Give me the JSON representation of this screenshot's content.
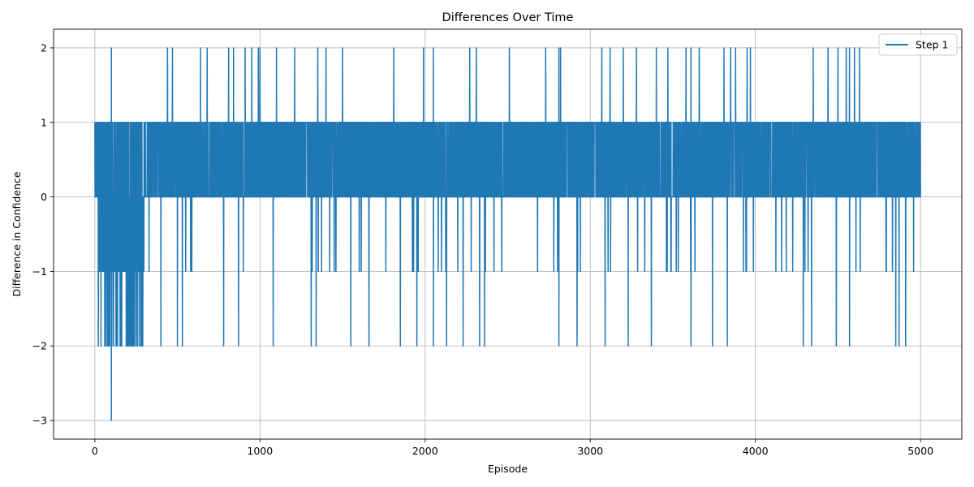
{
  "chart_data": {
    "type": "line",
    "title": "Differences Over Time",
    "xlabel": "Episode",
    "ylabel": "Difference in Confidence",
    "xlim": [
      -250,
      5250
    ],
    "ylim": [
      -3.25,
      2.25
    ],
    "xticks": [
      0,
      1000,
      2000,
      3000,
      4000,
      5000
    ],
    "xtick_labels": [
      "0",
      "1000",
      "2000",
      "3000",
      "4000",
      "5000"
    ],
    "yticks": [
      -3,
      -2,
      -1,
      0,
      1,
      2
    ],
    "ytick_labels": [
      "−3",
      "−2",
      "−1",
      "0",
      "1",
      "2"
    ],
    "grid": true,
    "legend_position": "top-right",
    "color": "#1f77b4",
    "series": [
      {
        "name": "Step 1",
        "episodes": 5000,
        "dominant_range": [
          0,
          1
        ],
        "note_values": "each episode value is an integer difference in {-3,-2,-1,0,1,2}; the series oscillates between 0 and 1 nearly every step",
        "special_points": [
          {
            "x": 100,
            "y": -3
          },
          {
            "x": 100,
            "y": 2
          },
          {
            "x": 440,
            "y": 2
          },
          {
            "x": 470,
            "y": 2
          },
          {
            "x": 640,
            "y": 2
          },
          {
            "x": 680,
            "y": 2
          },
          {
            "x": 810,
            "y": 2
          },
          {
            "x": 840,
            "y": 2
          },
          {
            "x": 910,
            "y": 2
          },
          {
            "x": 950,
            "y": 2
          },
          {
            "x": 990,
            "y": 2
          },
          {
            "x": 1000,
            "y": 2
          },
          {
            "x": 1100,
            "y": 2
          },
          {
            "x": 1210,
            "y": 2
          },
          {
            "x": 1350,
            "y": 2
          },
          {
            "x": 1400,
            "y": 2
          },
          {
            "x": 1500,
            "y": 2
          },
          {
            "x": 1810,
            "y": 2
          },
          {
            "x": 1990,
            "y": 2
          },
          {
            "x": 2050,
            "y": 2
          },
          {
            "x": 2270,
            "y": 2
          },
          {
            "x": 2310,
            "y": 2
          },
          {
            "x": 2510,
            "y": 2
          },
          {
            "x": 2730,
            "y": 2
          },
          {
            "x": 2810,
            "y": 2
          },
          {
            "x": 2820,
            "y": 2
          },
          {
            "x": 3070,
            "y": 2
          },
          {
            "x": 3120,
            "y": 2
          },
          {
            "x": 3200,
            "y": 2
          },
          {
            "x": 3280,
            "y": 2
          },
          {
            "x": 3400,
            "y": 2
          },
          {
            "x": 3470,
            "y": 2
          },
          {
            "x": 3580,
            "y": 2
          },
          {
            "x": 3610,
            "y": 2
          },
          {
            "x": 3660,
            "y": 2
          },
          {
            "x": 3810,
            "y": 2
          },
          {
            "x": 3850,
            "y": 2
          },
          {
            "x": 3880,
            "y": 2
          },
          {
            "x": 3950,
            "y": 2
          },
          {
            "x": 3970,
            "y": 2
          },
          {
            "x": 4350,
            "y": 2
          },
          {
            "x": 4440,
            "y": 2
          },
          {
            "x": 4500,
            "y": 2
          },
          {
            "x": 4550,
            "y": 2
          },
          {
            "x": 4570,
            "y": 2
          },
          {
            "x": 4600,
            "y": 2
          },
          {
            "x": 4630,
            "y": 2
          },
          {
            "x": 60,
            "y": -2
          },
          {
            "x": 130,
            "y": -2
          },
          {
            "x": 160,
            "y": -2
          },
          {
            "x": 190,
            "y": -2
          },
          {
            "x": 210,
            "y": -2
          },
          {
            "x": 230,
            "y": -2
          },
          {
            "x": 250,
            "y": -2
          },
          {
            "x": 270,
            "y": -2
          },
          {
            "x": 280,
            "y": -2
          },
          {
            "x": 400,
            "y": -2
          },
          {
            "x": 500,
            "y": -2
          },
          {
            "x": 530,
            "y": -2
          },
          {
            "x": 780,
            "y": -2
          },
          {
            "x": 870,
            "y": -2
          },
          {
            "x": 1080,
            "y": -2
          },
          {
            "x": 1310,
            "y": -2
          },
          {
            "x": 1340,
            "y": -2
          },
          {
            "x": 1550,
            "y": -2
          },
          {
            "x": 1660,
            "y": -2
          },
          {
            "x": 1850,
            "y": -2
          },
          {
            "x": 1950,
            "y": -2
          },
          {
            "x": 2050,
            "y": -2
          },
          {
            "x": 2130,
            "y": -2
          },
          {
            "x": 2230,
            "y": -2
          },
          {
            "x": 2330,
            "y": -2
          },
          {
            "x": 2360,
            "y": -2
          },
          {
            "x": 2810,
            "y": -2
          },
          {
            "x": 2920,
            "y": -2
          },
          {
            "x": 3090,
            "y": -2
          },
          {
            "x": 3230,
            "y": -2
          },
          {
            "x": 3370,
            "y": -2
          },
          {
            "x": 3610,
            "y": -2
          },
          {
            "x": 3740,
            "y": -2
          },
          {
            "x": 3830,
            "y": -2
          },
          {
            "x": 4290,
            "y": -2
          },
          {
            "x": 4340,
            "y": -2
          },
          {
            "x": 4490,
            "y": -2
          },
          {
            "x": 4570,
            "y": -2
          },
          {
            "x": 4850,
            "y": -2
          },
          {
            "x": 4870,
            "y": -2
          },
          {
            "x": 4910,
            "y": -2
          }
        ]
      }
    ]
  }
}
